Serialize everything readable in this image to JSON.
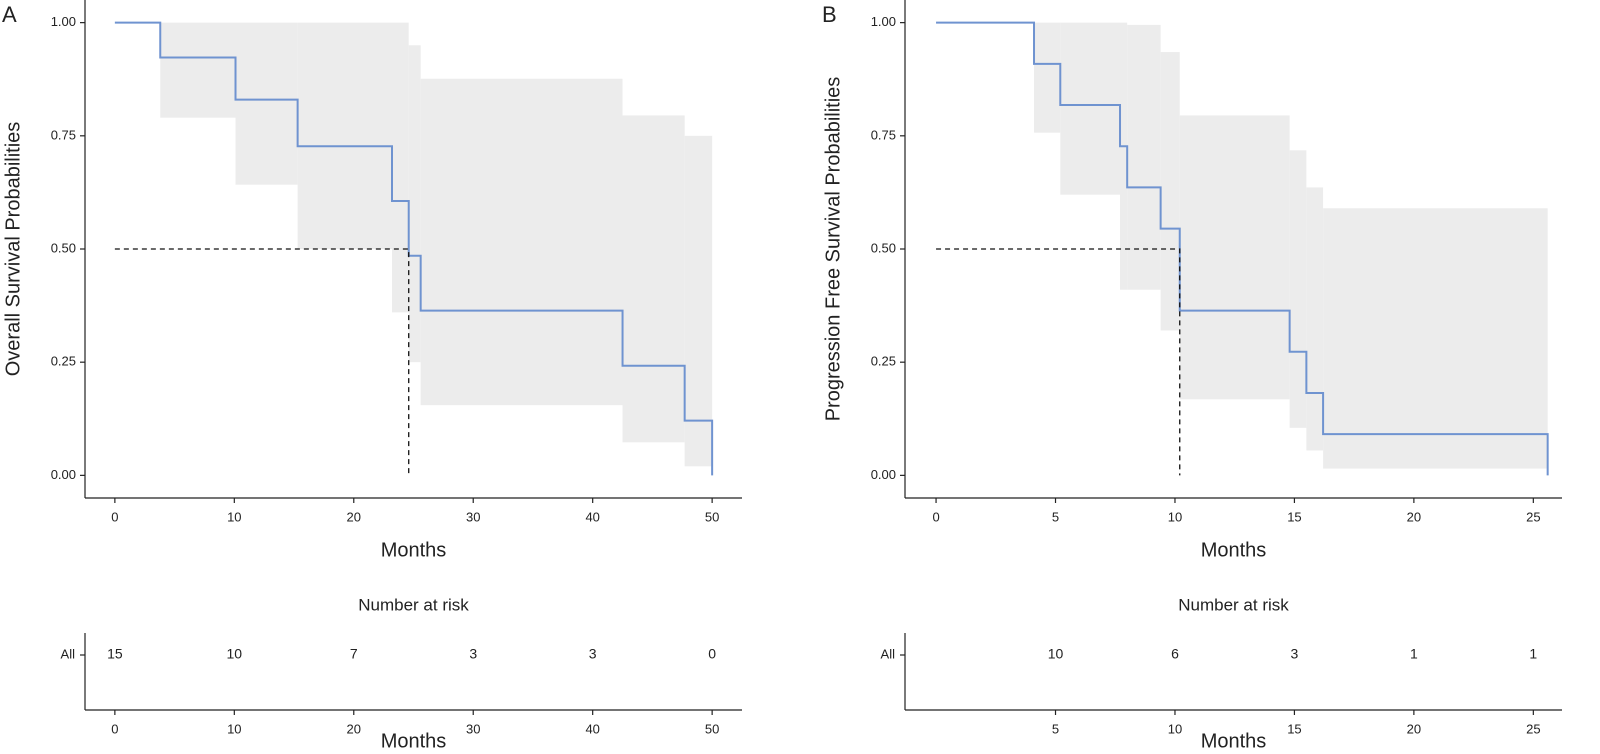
{
  "chart_data": [
    {
      "type": "step",
      "label": "A",
      "ylabel": "Overall Survival Probabilities",
      "xlabel": "Months",
      "xlim": [
        -2.5,
        52.5
      ],
      "ylim": [
        -0.05,
        1.05
      ],
      "xticks": [
        0,
        10,
        20,
        30,
        40,
        50
      ],
      "yticks": [
        {
          "value": 0,
          "label": "0.00"
        },
        {
          "value": 0.25,
          "label": "0.25"
        },
        {
          "value": 0.5,
          "label": "0.50"
        },
        {
          "value": 0.75,
          "label": "0.75"
        },
        {
          "value": 1,
          "label": "1.00"
        }
      ],
      "band_color": "#ececec",
      "series": [
        {
          "name": "All",
          "color": "#6f93d0",
          "x": [
            0,
            3.8,
            10.1,
            15.3,
            23.2,
            24.6,
            25.6,
            42.5,
            47.7,
            50
          ],
          "values": [
            1,
            0.923,
            0.83,
            0.727,
            0.606,
            0.485,
            0.364,
            0.242,
            0.121,
            0
          ],
          "lower": [
            1,
            0.79,
            0.642,
            0.5,
            0.36,
            0.25,
            0.155,
            0.073,
            0.02,
            0
          ],
          "upper": [
            1,
            1,
            1,
            1,
            1,
            0.95,
            0.876,
            0.795,
            0.75,
            0.75
          ]
        }
      ],
      "median": {
        "x": 24.6,
        "y": 0.5
      },
      "risk_table": {
        "title": "Number at risk",
        "xlabel": "Months",
        "xticks": [
          0,
          10,
          20,
          30,
          40,
          50
        ],
        "counts": [
          15,
          10,
          7,
          3,
          3,
          0
        ]
      }
    },
    {
      "type": "step",
      "label": "B",
      "ylabel": "Progression Free Survival Probabilities",
      "xlabel": "Months",
      "xlim": [
        -1.3,
        26.2
      ],
      "ylim": [
        -0.05,
        1.05
      ],
      "xticks": [
        0,
        5,
        10,
        15,
        20,
        25
      ],
      "yticks": [
        {
          "value": 0,
          "label": "0.00"
        },
        {
          "value": 0.25,
          "label": "0.25"
        },
        {
          "value": 0.5,
          "label": "0.50"
        },
        {
          "value": 0.75,
          "label": "0.75"
        },
        {
          "value": 1,
          "label": "1.00"
        }
      ],
      "band_color": "#ececec",
      "series": [
        {
          "name": "All",
          "color": "#6f93d0",
          "x": [
            0,
            4.1,
            5.2,
            7.7,
            8.0,
            9.4,
            10.2,
            14.8,
            15.5,
            16.2,
            25.6
          ],
          "values": [
            1,
            0.909,
            0.818,
            0.727,
            0.636,
            0.545,
            0.364,
            0.273,
            0.182,
            0.091,
            0
          ],
          "lower": [
            1,
            0.757,
            0.62,
            0.41,
            0.41,
            0.32,
            0.168,
            0.105,
            0.055,
            0.015,
            0
          ],
          "upper": [
            1,
            1,
            1,
            1,
            0.995,
            0.935,
            0.795,
            0.718,
            0.636,
            0.59,
            0.59
          ]
        }
      ],
      "median": {
        "x": 10.2,
        "y": 0.5
      },
      "risk_table": {
        "title": "Number at risk",
        "xlabel": "Months",
        "xticks": [
          5,
          10,
          15,
          20,
          25
        ],
        "counts": [
          10,
          6,
          3,
          1,
          1
        ]
      }
    }
  ]
}
